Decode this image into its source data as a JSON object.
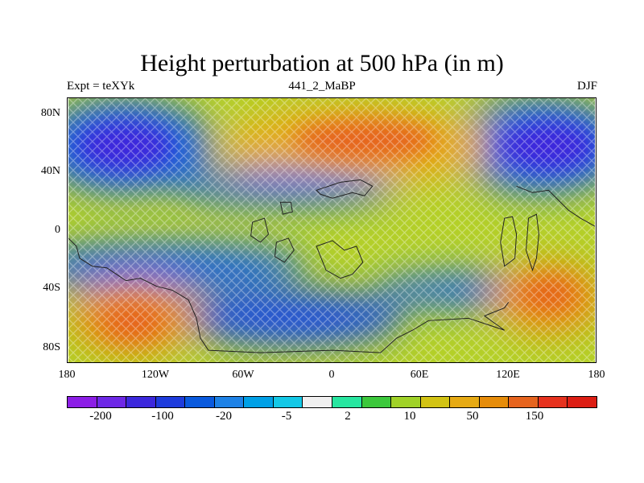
{
  "title": "Height perturbation at 500 hPa (in m)",
  "left_string": "Expt = teXYk",
  "center_string": "441_2_MaBP",
  "right_string": "DJF",
  "lat_labels": [
    "80N",
    "40N",
    "0",
    "40S",
    "80S"
  ],
  "lon_labels": [
    "180",
    "120W",
    "60W",
    "0",
    "60E",
    "120E",
    "180"
  ],
  "colorbar": {
    "colors": [
      "#8c1ee6",
      "#6e28e6",
      "#3c28dc",
      "#1e3cdc",
      "#0a5ade",
      "#1e82e6",
      "#00a0e6",
      "#14c8e6",
      "#f0f0f0",
      "#28e6a0",
      "#3cc83c",
      "#a0d228",
      "#d2c314",
      "#e6aa14",
      "#e68c0a",
      "#e6641e",
      "#e6321e",
      "#dc1e14"
    ],
    "labels": [
      "-200",
      "-100",
      "-20",
      "-5",
      "2",
      "10",
      "50",
      "150"
    ]
  },
  "chart_data": {
    "type": "heatmap",
    "title": "Height perturbation at 500 hPa (in m)",
    "field": "500 hPa height perturbation",
    "units": "m",
    "season": "DJF",
    "xlim": [
      -180,
      180
    ],
    "ylim": [
      -90,
      90
    ],
    "anomaly_centers": [
      {
        "lon": -150,
        "lat": 60,
        "sign": "negative",
        "approx_value": -150
      },
      {
        "lon": 20,
        "lat": 60,
        "sign": "positive",
        "approx_value": 100
      },
      {
        "lon": 150,
        "lat": 60,
        "sign": "negative",
        "approx_value": -150
      },
      {
        "lon": -60,
        "lat": 35,
        "sign": "negative",
        "approx_value": -50
      },
      {
        "lon": -140,
        "lat": -60,
        "sign": "positive",
        "approx_value": 100
      },
      {
        "lon": -60,
        "lat": -70,
        "sign": "negative",
        "approx_value": -100
      },
      {
        "lon": 150,
        "lat": -45,
        "sign": "positive",
        "approx_value": 100
      },
      {
        "lon": 80,
        "lat": -40,
        "sign": "negative",
        "approx_value": -50
      }
    ]
  }
}
